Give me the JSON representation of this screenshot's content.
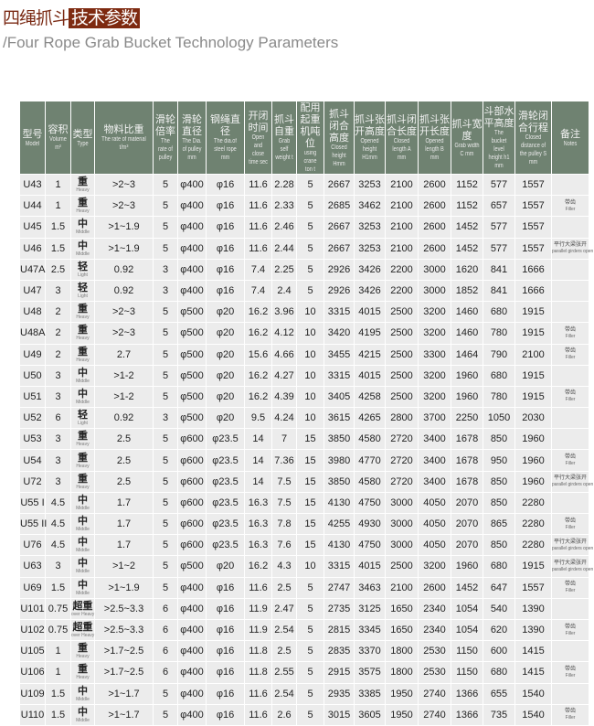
{
  "title": {
    "part1": "四绳抓斗",
    "part2": "技术参数"
  },
  "subtitle": "/Four Rope Grab Bucket Technology Parameters",
  "colors": {
    "header_bg": "#6f8271",
    "title_highlight": "#7e2a10",
    "cell_bg": "#ececec"
  },
  "headers": [
    {
      "cn": "型号",
      "en": "Model"
    },
    {
      "cn": "容积",
      "en": "Volume m³"
    },
    {
      "cn": "类型",
      "en": "Type"
    },
    {
      "cn": "物料比重",
      "en": "The rate of material t/m³"
    },
    {
      "cn": "滑轮倍率",
      "en": "The rate of pulley"
    },
    {
      "cn": "滑轮直径",
      "en": "The Dia. of pulley mm"
    },
    {
      "cn": "钢绳直径",
      "en": "The dia.of steel rope mm"
    },
    {
      "cn": "开闭时间",
      "en": "Open and close time sec"
    },
    {
      "cn": "抓斗自重",
      "en": "Grab self weight t"
    },
    {
      "cn": "配用起重机吨位",
      "en": "using crane ton t"
    },
    {
      "cn": "抓斗闭合高度",
      "en": "Closed height Hmm"
    },
    {
      "cn": "抓斗张开高度",
      "en": "Opened height H1mm"
    },
    {
      "cn": "抓斗闭合长度",
      "en": "Closed length A mm"
    },
    {
      "cn": "抓斗张开长度",
      "en": "Opened length B mm"
    },
    {
      "cn": "抓斗宽度",
      "en": "Grab width C mm"
    },
    {
      "cn": "斗部水平高度",
      "en": "The bucket level height h1 mm"
    },
    {
      "cn": "滑轮闭合行程",
      "en": "Closed distance of the pulley S mm"
    },
    {
      "cn": "备注",
      "en": "Notes"
    }
  ],
  "types": {
    "heavy": {
      "cn": "重",
      "en": "Heavy"
    },
    "middle": {
      "cn": "中",
      "en": "Middle"
    },
    "light": {
      "cn": "轻",
      "en": "Light"
    },
    "over": {
      "cn": "超重",
      "en": "over Heavy"
    }
  },
  "notes": {
    "filler": {
      "cn": "带齿",
      "en": "Filler"
    },
    "parallel": {
      "cn": "平行大梁张开",
      "en": "parallel girders open"
    }
  },
  "rows": [
    {
      "model": "U43",
      "volume": "1",
      "type": "heavy",
      "rate": ">2~3",
      "pulley_rate": "5",
      "pulley_dia": "φ400",
      "rope_dia": "φ16",
      "time": "11.6",
      "weight": "2.28",
      "crane": "5",
      "H": "2667",
      "H1": "3253",
      "A": "2100",
      "B": "2600",
      "C": "1152",
      "h1": "577",
      "S": "1557",
      "note": ""
    },
    {
      "model": "U44",
      "volume": "1",
      "type": "heavy",
      "rate": ">2~3",
      "pulley_rate": "5",
      "pulley_dia": "φ400",
      "rope_dia": "φ16",
      "time": "11.6",
      "weight": "2.33",
      "crane": "5",
      "H": "2685",
      "H1": "3462",
      "A": "2100",
      "B": "2600",
      "C": "1152",
      "h1": "657",
      "S": "1557",
      "note": "filler"
    },
    {
      "model": "U45",
      "volume": "1.5",
      "type": "middle",
      "rate": ">1~1.9",
      "pulley_rate": "5",
      "pulley_dia": "φ400",
      "rope_dia": "φ16",
      "time": "11.6",
      "weight": "2.46",
      "crane": "5",
      "H": "2667",
      "H1": "3253",
      "A": "2100",
      "B": "2600",
      "C": "1452",
      "h1": "577",
      "S": "1557",
      "note": ""
    },
    {
      "model": "U46",
      "volume": "1.5",
      "type": "middle",
      "rate": ">1~1.9",
      "pulley_rate": "5",
      "pulley_dia": "φ400",
      "rope_dia": "φ16",
      "time": "11.6",
      "weight": "2.44",
      "crane": "5",
      "H": "2667",
      "H1": "3253",
      "A": "2100",
      "B": "2600",
      "C": "1452",
      "h1": "577",
      "S": "1557",
      "note": "parallel"
    },
    {
      "model": "U47A",
      "volume": "2.5",
      "type": "light",
      "rate": "0.92",
      "pulley_rate": "3",
      "pulley_dia": "φ400",
      "rope_dia": "φ16",
      "time": "7.4",
      "weight": "2.25",
      "crane": "5",
      "H": "2926",
      "H1": "3426",
      "A": "2200",
      "B": "3000",
      "C": "1620",
      "h1": "841",
      "S": "1666",
      "note": ""
    },
    {
      "model": "U47",
      "volume": "3",
      "type": "light",
      "rate": "0.92",
      "pulley_rate": "3",
      "pulley_dia": "φ400",
      "rope_dia": "φ16",
      "time": "7.4",
      "weight": "2.4",
      "crane": "5",
      "H": "2926",
      "H1": "3426",
      "A": "2200",
      "B": "3000",
      "C": "1852",
      "h1": "841",
      "S": "1666",
      "note": ""
    },
    {
      "model": "U48",
      "volume": "2",
      "type": "heavy",
      "rate": ">2~3",
      "pulley_rate": "5",
      "pulley_dia": "φ500",
      "rope_dia": "φ20",
      "time": "16.2",
      "weight": "3.96",
      "crane": "10",
      "H": "3315",
      "H1": "4015",
      "A": "2500",
      "B": "3200",
      "C": "1460",
      "h1": "680",
      "S": "1915",
      "note": ""
    },
    {
      "model": "U48A",
      "volume": "2",
      "type": "heavy",
      "rate": ">2~3",
      "pulley_rate": "5",
      "pulley_dia": "φ500",
      "rope_dia": "φ20",
      "time": "16.2",
      "weight": "4.12",
      "crane": "10",
      "H": "3420",
      "H1": "4195",
      "A": "2500",
      "B": "3200",
      "C": "1460",
      "h1": "780",
      "S": "1915",
      "note": "filler"
    },
    {
      "model": "U49",
      "volume": "2",
      "type": "heavy",
      "rate": "2.7",
      "pulley_rate": "5",
      "pulley_dia": "φ500",
      "rope_dia": "φ20",
      "time": "15.6",
      "weight": "4.66",
      "crane": "10",
      "H": "3455",
      "H1": "4215",
      "A": "2500",
      "B": "3300",
      "C": "1464",
      "h1": "790",
      "S": "2100",
      "note": "filler"
    },
    {
      "model": "U50",
      "volume": "3",
      "type": "middle",
      "rate": ">1-2",
      "pulley_rate": "5",
      "pulley_dia": "φ500",
      "rope_dia": "φ20",
      "time": "16.2",
      "weight": "4.27",
      "crane": "10",
      "H": "3315",
      "H1": "4015",
      "A": "2500",
      "B": "3200",
      "C": "1960",
      "h1": "680",
      "S": "1915",
      "note": ""
    },
    {
      "model": "U51",
      "volume": "3",
      "type": "middle",
      "rate": ">1-2",
      "pulley_rate": "5",
      "pulley_dia": "φ500",
      "rope_dia": "φ20",
      "time": "16.2",
      "weight": "4.39",
      "crane": "10",
      "H": "3405",
      "H1": "4258",
      "A": "2500",
      "B": "3200",
      "C": "1960",
      "h1": "780",
      "S": "1915",
      "note": "filler"
    },
    {
      "model": "U52",
      "volume": "6",
      "type": "light",
      "rate": "0.92",
      "pulley_rate": "3",
      "pulley_dia": "φ500",
      "rope_dia": "φ20",
      "time": "9.5",
      "weight": "4.24",
      "crane": "10",
      "H": "3615",
      "H1": "4265",
      "A": "2800",
      "B": "3700",
      "C": "2250",
      "h1": "1050",
      "S": "2030",
      "note": ""
    },
    {
      "model": "U53",
      "volume": "3",
      "type": "heavy",
      "rate": "2.5",
      "pulley_rate": "5",
      "pulley_dia": "φ600",
      "rope_dia": "φ23.5",
      "time": "14",
      "weight": "7",
      "crane": "15",
      "H": "3850",
      "H1": "4580",
      "A": "2720",
      "B": "3400",
      "C": "1678",
      "h1": "850",
      "S": "1960",
      "note": ""
    },
    {
      "model": "U54",
      "volume": "3",
      "type": "heavy",
      "rate": "2.5",
      "pulley_rate": "5",
      "pulley_dia": "φ600",
      "rope_dia": "φ23.5",
      "time": "14",
      "weight": "7.36",
      "crane": "15",
      "H": "3980",
      "H1": "4770",
      "A": "2720",
      "B": "3400",
      "C": "1678",
      "h1": "950",
      "S": "1960",
      "note": "filler"
    },
    {
      "model": "U72",
      "volume": "3",
      "type": "heavy",
      "rate": "2.5",
      "pulley_rate": "5",
      "pulley_dia": "φ600",
      "rope_dia": "φ23.5",
      "time": "14",
      "weight": "7.5",
      "crane": "15",
      "H": "3850",
      "H1": "4580",
      "A": "2720",
      "B": "3400",
      "C": "1678",
      "h1": "850",
      "S": "1960",
      "note": "parallel"
    },
    {
      "model": "U55 I",
      "volume": "4.5",
      "type": "middle",
      "rate": "1.7",
      "pulley_rate": "5",
      "pulley_dia": "φ600",
      "rope_dia": "φ23.5",
      "time": "16.3",
      "weight": "7.5",
      "crane": "15",
      "H": "4130",
      "H1": "4750",
      "A": "3000",
      "B": "4050",
      "C": "2070",
      "h1": "850",
      "S": "2280",
      "note": ""
    },
    {
      "model": "U55 II",
      "volume": "4.5",
      "type": "middle",
      "rate": "1.7",
      "pulley_rate": "5",
      "pulley_dia": "φ600",
      "rope_dia": "φ23.5",
      "time": "16.3",
      "weight": "7.8",
      "crane": "15",
      "H": "4255",
      "H1": "4930",
      "A": "3000",
      "B": "4050",
      "C": "2070",
      "h1": "865",
      "S": "2280",
      "note": "filler"
    },
    {
      "model": "U76",
      "volume": "4.5",
      "type": "middle",
      "rate": "1.7",
      "pulley_rate": "5",
      "pulley_dia": "φ600",
      "rope_dia": "φ23.5",
      "time": "16.3",
      "weight": "7.6",
      "crane": "15",
      "H": "4130",
      "H1": "4750",
      "A": "3000",
      "B": "4050",
      "C": "2070",
      "h1": "850",
      "S": "2280",
      "note": "parallel"
    },
    {
      "model": "U63",
      "volume": "3",
      "type": "middle",
      "rate": ">1~2",
      "pulley_rate": "5",
      "pulley_dia": "φ500",
      "rope_dia": "φ20",
      "time": "16.2",
      "weight": "4.3",
      "crane": "10",
      "H": "3315",
      "H1": "4015",
      "A": "2500",
      "B": "3200",
      "C": "1960",
      "h1": "680",
      "S": "1915",
      "note": "parallel"
    },
    {
      "model": "U69",
      "volume": "1.5",
      "type": "middle",
      "rate": ">1~1.9",
      "pulley_rate": "5",
      "pulley_dia": "φ400",
      "rope_dia": "φ16",
      "time": "11.6",
      "weight": "2.5",
      "crane": "5",
      "H": "2747",
      "H1": "3463",
      "A": "2100",
      "B": "2600",
      "C": "1452",
      "h1": "647",
      "S": "1557",
      "note": "filler"
    },
    {
      "model": "U101",
      "volume": "0.75",
      "type": "over",
      "rate": ">2.5~3.3",
      "pulley_rate": "6",
      "pulley_dia": "φ400",
      "rope_dia": "φ16",
      "time": "11.9",
      "weight": "2.47",
      "crane": "5",
      "H": "2735",
      "H1": "3125",
      "A": "1650",
      "B": "2340",
      "C": "1054",
      "h1": "540",
      "S": "1390",
      "note": ""
    },
    {
      "model": "U102",
      "volume": "0.75",
      "type": "over",
      "rate": ">2.5~3.3",
      "pulley_rate": "6",
      "pulley_dia": "φ400",
      "rope_dia": "φ16",
      "time": "11.9",
      "weight": "2.54",
      "crane": "5",
      "H": "2815",
      "H1": "3345",
      "A": "1650",
      "B": "2340",
      "C": "1054",
      "h1": "620",
      "S": "1390",
      "note": "filler"
    },
    {
      "model": "U105",
      "volume": "1",
      "type": "heavy",
      "rate": ">1.7~2.5",
      "pulley_rate": "6",
      "pulley_dia": "φ400",
      "rope_dia": "φ16",
      "time": "11.8",
      "weight": "2.5",
      "crane": "5",
      "H": "2835",
      "H1": "3370",
      "A": "1800",
      "B": "2530",
      "C": "1150",
      "h1": "600",
      "S": "1415",
      "note": ""
    },
    {
      "model": "U106",
      "volume": "1",
      "type": "heavy",
      "rate": ">1.7~2.5",
      "pulley_rate": "6",
      "pulley_dia": "φ400",
      "rope_dia": "φ16",
      "time": "11.8",
      "weight": "2.55",
      "crane": "5",
      "H": "2915",
      "H1": "3575",
      "A": "1800",
      "B": "2530",
      "C": "1150",
      "h1": "680",
      "S": "1415",
      "note": "filler"
    },
    {
      "model": "U109",
      "volume": "1.5",
      "type": "middle",
      "rate": ">1~1.7",
      "pulley_rate": "5",
      "pulley_dia": "φ400",
      "rope_dia": "φ16",
      "time": "11.6",
      "weight": "2.54",
      "crane": "5",
      "H": "2935",
      "H1": "3385",
      "A": "1950",
      "B": "2740",
      "C": "1366",
      "h1": "655",
      "S": "1540",
      "note": ""
    },
    {
      "model": "U110",
      "volume": "1.5",
      "type": "middle",
      "rate": ">1~1.7",
      "pulley_rate": "5",
      "pulley_dia": "φ400",
      "rope_dia": "φ16",
      "time": "11.6",
      "weight": "2.6",
      "crane": "5",
      "H": "3015",
      "H1": "3605",
      "A": "1950",
      "B": "2740",
      "C": "1366",
      "h1": "735",
      "S": "1540",
      "note": "filler"
    }
  ]
}
